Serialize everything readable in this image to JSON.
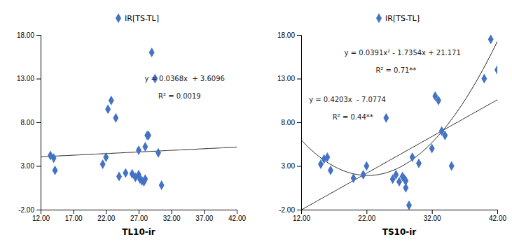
{
  "chart_data": [
    {
      "type": "scatter",
      "xlabel": "TL10-ir",
      "series": [
        {
          "name": "IR[TS-TL]",
          "color": "#4472C4",
          "marker": "diamond",
          "x": [
            13.5,
            14.0,
            14.2,
            21.5,
            22.0,
            22.3,
            22.8,
            23.5,
            24.0,
            25.0,
            26.0,
            26.5,
            27.0,
            27.0,
            27.2,
            27.5,
            27.8,
            28.0,
            28.0,
            28.3,
            28.5,
            29.0,
            29.5,
            30.0,
            30.5
          ],
          "values": [
            4.2,
            3.9,
            2.5,
            3.2,
            4.0,
            9.5,
            10.5,
            8.5,
            1.8,
            2.2,
            2.1,
            1.7,
            4.8,
            2.0,
            1.5,
            1.3,
            1.2,
            5.2,
            1.5,
            6.5,
            6.5,
            16.0,
            13.0,
            4.5,
            0.8
          ]
        }
      ],
      "trendlines": [
        {
          "coefficients": [
            0.0368,
            3.6096
          ],
          "color": "#1a1a1a"
        }
      ],
      "annotations": [
        "y = 0.0368x  + 3.6096",
        "R² = 0.0019"
      ],
      "xlim": [
        12.0,
        42.0
      ],
      "ylim": [
        -2.0,
        18.0
      ],
      "xticks": [
        {
          "value": 12.0,
          "label": "12.00"
        },
        {
          "value": 17.0,
          "label": "17.00"
        },
        {
          "value": 22.0,
          "label": "22.00"
        },
        {
          "value": 27.0,
          "label": "27.00"
        },
        {
          "value": 32.0,
          "label": "32.00"
        },
        {
          "value": 37.0,
          "label": "37.00"
        },
        {
          "value": 42.0,
          "label": "42.00"
        }
      ],
      "yticks": [
        {
          "value": -2.0,
          "label": "-2.00"
        },
        {
          "value": 3.0,
          "label": "3.00"
        },
        {
          "value": 8.0,
          "label": "8.00"
        },
        {
          "value": 13.0,
          "label": "13.00"
        },
        {
          "value": 18.0,
          "label": "18.00"
        }
      ],
      "legend": "top",
      "grid": false
    },
    {
      "type": "scatter",
      "xlabel": "TS10-ir",
      "series": [
        {
          "name": "IR[TS-TL]",
          "color": "#4472C4",
          "marker": "diamond",
          "x": [
            15.0,
            15.5,
            16.0,
            16.5,
            20.0,
            21.5,
            22.0,
            25.0,
            26.0,
            26.5,
            27.0,
            27.5,
            27.8,
            28.0,
            28.0,
            28.5,
            29.0,
            30.0,
            32.0,
            32.5,
            33.0,
            33.5,
            34.0,
            35.0,
            40.0,
            41.0,
            42.0
          ],
          "values": [
            3.2,
            3.8,
            4.0,
            2.5,
            1.6,
            2.0,
            3.0,
            8.5,
            1.5,
            2.0,
            1.2,
            1.8,
            1.5,
            1.3,
            0.5,
            -1.5,
            4.0,
            3.3,
            5.0,
            11.0,
            10.5,
            7.0,
            6.5,
            3.0,
            13.0,
            17.5,
            14.0
          ]
        }
      ],
      "trendlines": [
        {
          "coefficients": [
            0.0391,
            -1.7354,
            21.171
          ],
          "color": "#1a1a1a"
        },
        {
          "coefficients": [
            0.4203,
            -7.0774
          ],
          "color": "#1a1a1a"
        }
      ],
      "annotations": [
        "y = 0.0391x² - 1.7354x + 21.171",
        "R² = 0.71**",
        "y = 0.4203x  - 7.0774",
        "R² = 0.44**"
      ],
      "xlim": [
        12.0,
        42.0
      ],
      "ylim": [
        -2.0,
        18.0
      ],
      "xticks": [
        {
          "value": 12.0,
          "label": "12.00"
        },
        {
          "value": 22.0,
          "label": "22.00"
        },
        {
          "value": 32.0,
          "label": "32.00"
        },
        {
          "value": 42.0,
          "label": "42.00"
        }
      ],
      "yticks": [
        {
          "value": -2.0,
          "label": "-2.00"
        },
        {
          "value": 3.0,
          "label": "3.00"
        },
        {
          "value": 8.0,
          "label": "8.00"
        },
        {
          "value": 13.0,
          "label": "13.00"
        },
        {
          "value": 18.0,
          "label": "18.00"
        }
      ],
      "legend": "top",
      "grid": false
    }
  ]
}
